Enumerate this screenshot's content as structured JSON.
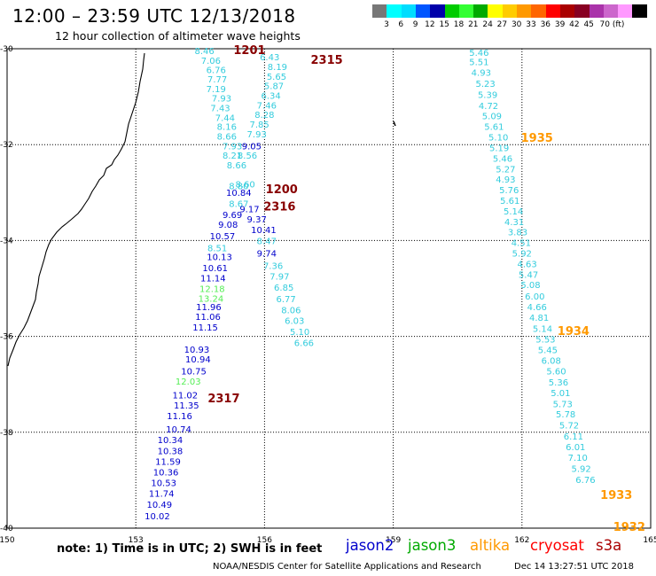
{
  "title": "12:00 – 23:59 UTC 12/13/2018",
  "subtitle": "12 hour collection of altimeter wave heights",
  "legend": {
    "colors": [
      "#777777",
      "#00ffff",
      "#00ddff",
      "#0055ff",
      "#0000aa",
      "#00cc00",
      "#33ff33",
      "#00aa00",
      "#ffff00",
      "#ffcc00",
      "#ff9900",
      "#ff6600",
      "#ff0000",
      "#aa0000",
      "#880022",
      "#aa33aa",
      "#cc66cc",
      "#ff99ff",
      "#000000"
    ],
    "labels": [
      "3",
      "6",
      "9",
      "12",
      "15",
      "18",
      "21",
      "24",
      "27",
      "30",
      "33",
      "36",
      "39",
      "42",
      "45",
      "70 (ft)"
    ]
  },
  "note": "note: 1) Time is in UTC; 2) SWH is in feet",
  "satellites": [
    {
      "name": "jason2",
      "color": "#0000cc"
    },
    {
      "name": "jason3",
      "color": "#00aa00"
    },
    {
      "name": "altika",
      "color": "#ff9900"
    },
    {
      "name": "cryosat",
      "color": "#ff0000"
    },
    {
      "name": "s3a",
      "color": "#aa0000"
    }
  ],
  "footer": "NOAA/NESDIS Center for Satellite Applications and Research",
  "footer_date": "Dec 14 13:27:51 UTC 2018",
  "map": {
    "x_ticks": [
      "150",
      "153",
      "156",
      "159",
      "162",
      "165"
    ],
    "y_ticks": [
      "-30",
      "-32",
      "-34",
      "-36",
      "-38",
      "-40"
    ],
    "lon_range": [
      150,
      165
    ],
    "lat_range": [
      -40,
      -30
    ],
    "colors": {
      "cyan": "#33ccdd",
      "blue": "#0000cc",
      "green": "#55ee55",
      "darkred": "#880000",
      "orange": "#ff9900"
    },
    "time_labels": [
      {
        "text": "1201",
        "lon": 155.65,
        "lat": -30.02,
        "color": "darkred"
      },
      {
        "text": "2315",
        "lon": 157.45,
        "lat": -30.22,
        "color": "darkred"
      },
      {
        "text": "1200",
        "lon": 156.4,
        "lat": -32.92,
        "color": "darkred"
      },
      {
        "text": "2316",
        "lon": 156.35,
        "lat": -33.28,
        "color": "darkred"
      },
      {
        "text": "1935",
        "lon": 162.35,
        "lat": -31.85,
        "color": "orange"
      },
      {
        "text": "1934",
        "lon": 163.2,
        "lat": -35.88,
        "color": "orange"
      },
      {
        "text": "2317",
        "lon": 155.05,
        "lat": -37.28,
        "color": "darkred"
      },
      {
        "text": "1933",
        "lon": 164.2,
        "lat": -39.3,
        "color": "orange"
      },
      {
        "text": "1932",
        "lon": 164.5,
        "lat": -39.96,
        "color": "orange"
      }
    ],
    "tracks": [
      {
        "name": "track-a-jason2",
        "values": [
          [
            "8.46",
            154.6,
            -30.04,
            "cyan"
          ],
          [
            "7.06",
            154.75,
            -30.24,
            "cyan"
          ],
          [
            "6.76",
            154.87,
            -30.43,
            "cyan"
          ],
          [
            "7.77",
            154.9,
            -30.63,
            "cyan"
          ],
          [
            "7.19",
            154.87,
            -30.83,
            "cyan"
          ],
          [
            "7.93",
            155.0,
            -31.03,
            "cyan"
          ],
          [
            "7.43",
            154.97,
            -31.23,
            "cyan"
          ],
          [
            "7.44",
            155.08,
            -31.43,
            "cyan"
          ],
          [
            "8.16",
            155.12,
            -31.62,
            "cyan"
          ],
          [
            "8.66",
            155.12,
            -31.82,
            "cyan"
          ],
          [
            "7.93",
            155.25,
            -32.02,
            "cyan"
          ],
          [
            "8.21",
            155.25,
            -32.22,
            "cyan"
          ],
          [
            "8.66",
            155.35,
            -32.42,
            "cyan"
          ],
          [
            "8.80",
            155.4,
            -32.86,
            "cyan"
          ],
          [
            "8.67",
            155.4,
            -33.23,
            "cyan"
          ],
          [
            "10.84",
            155.4,
            -32.99,
            "blue"
          ],
          [
            "9.69",
            155.25,
            -33.46,
            "blue"
          ],
          [
            "9.08",
            155.15,
            -33.66,
            "blue"
          ],
          [
            "10.57",
            155.02,
            -33.9,
            "blue"
          ],
          [
            "10.13",
            154.95,
            -34.33,
            "blue"
          ],
          [
            "10.61",
            154.85,
            -34.57,
            "blue"
          ],
          [
            "11.14",
            154.8,
            -34.78,
            "blue"
          ],
          [
            "11.96",
            154.7,
            -35.38,
            "blue"
          ],
          [
            "11.06",
            154.68,
            -35.58,
            "blue"
          ],
          [
            "11.15",
            154.62,
            -35.8,
            "blue"
          ],
          [
            "10.93",
            154.42,
            -36.27,
            "blue"
          ],
          [
            "10.94",
            154.45,
            -36.47,
            "blue"
          ],
          [
            "10.75",
            154.35,
            -36.72,
            "blue"
          ],
          [
            "11.02",
            154.15,
            -37.22,
            "blue"
          ],
          [
            "11.35",
            154.18,
            -37.43,
            "blue"
          ],
          [
            "11.16",
            154.02,
            -37.65,
            "blue"
          ],
          [
            "10.74",
            154.0,
            -37.93,
            "blue"
          ],
          [
            "10.34",
            153.8,
            -38.15,
            "blue"
          ],
          [
            "10.38",
            153.8,
            -38.38,
            "blue"
          ],
          [
            "11.59",
            153.75,
            -38.6,
            "blue"
          ],
          [
            "10.36",
            153.7,
            -38.83,
            "blue"
          ],
          [
            "10.53",
            153.65,
            -39.05,
            "blue"
          ],
          [
            "11.74",
            153.6,
            -39.27,
            "blue"
          ],
          [
            "10.49",
            153.55,
            -39.5,
            "blue"
          ],
          [
            "10.02",
            153.5,
            -39.74,
            "blue"
          ],
          [
            "8.51",
            154.9,
            -34.15,
            "cyan"
          ],
          [
            "12.18",
            154.78,
            -35.0,
            "green"
          ],
          [
            "13.24",
            154.75,
            -35.2,
            "green"
          ],
          [
            "12.03",
            154.22,
            -36.93,
            "green"
          ]
        ]
      },
      {
        "name": "track-b-s3a",
        "values": [
          [
            "6.43",
            156.12,
            -30.17,
            "cyan"
          ],
          [
            "8.19",
            156.3,
            -30.37,
            "cyan"
          ],
          [
            "5.65",
            156.28,
            -30.57,
            "cyan"
          ],
          [
            "5.87",
            156.22,
            -30.77,
            "cyan"
          ],
          [
            "6.34",
            156.15,
            -30.97,
            "cyan"
          ],
          [
            "7.46",
            156.05,
            -31.17,
            "cyan"
          ],
          [
            "8.28",
            156.0,
            -31.37,
            "cyan"
          ],
          [
            "7.85",
            155.88,
            -31.57,
            "cyan"
          ],
          [
            "7.93",
            155.82,
            -31.77,
            "cyan"
          ],
          [
            "9.05",
            155.7,
            -32.02,
            "blue"
          ],
          [
            "8.56",
            155.6,
            -32.22,
            "cyan"
          ],
          [
            "8.60",
            155.55,
            -32.82,
            "cyan"
          ],
          [
            "9.17",
            155.65,
            -33.34,
            "blue"
          ],
          [
            "9.37",
            155.82,
            -33.55,
            "blue"
          ],
          [
            "10.41",
            155.98,
            -33.77,
            "blue"
          ],
          [
            "8.47",
            156.05,
            -34.0,
            "cyan"
          ],
          [
            "9.74",
            156.05,
            -34.26,
            "blue"
          ],
          [
            "7.36",
            156.2,
            -34.52,
            "cyan"
          ],
          [
            "7.97",
            156.35,
            -34.74,
            "cyan"
          ],
          [
            "6.85",
            156.45,
            -34.97,
            "cyan"
          ],
          [
            "6.77",
            156.5,
            -35.21,
            "cyan"
          ],
          [
            "8.06",
            156.62,
            -35.44,
            "cyan"
          ],
          [
            "6.03",
            156.7,
            -35.67,
            "cyan"
          ],
          [
            "5.10",
            156.82,
            -35.9,
            "cyan"
          ],
          [
            "6.66",
            156.92,
            -36.13,
            "cyan"
          ]
        ]
      },
      {
        "name": "track-c-altika",
        "values": [
          [
            "5.46",
            161.0,
            -30.07,
            "cyan"
          ],
          [
            "5.51",
            161.0,
            -30.27,
            "cyan"
          ],
          [
            "4.93",
            161.05,
            -30.49,
            "cyan"
          ],
          [
            "5.23",
            161.15,
            -30.72,
            "cyan"
          ],
          [
            "5.39",
            161.2,
            -30.95,
            "cyan"
          ],
          [
            "4.72",
            161.22,
            -31.18,
            "cyan"
          ],
          [
            "5.09",
            161.3,
            -31.4,
            "cyan"
          ],
          [
            "5.61",
            161.35,
            -31.62,
            "cyan"
          ],
          [
            "5.10",
            161.45,
            -31.84,
            "cyan"
          ],
          [
            "5.19",
            161.47,
            -32.06,
            "cyan"
          ],
          [
            "5.46",
            161.55,
            -32.28,
            "cyan"
          ],
          [
            "5.27",
            161.62,
            -32.5,
            "cyan"
          ],
          [
            "4.93",
            161.62,
            -32.72,
            "cyan"
          ],
          [
            "5.76",
            161.7,
            -32.94,
            "cyan"
          ],
          [
            "5.61",
            161.72,
            -33.16,
            "cyan"
          ],
          [
            "5.14",
            161.8,
            -33.38,
            "cyan"
          ],
          [
            "4.31",
            161.82,
            -33.6,
            "cyan"
          ],
          [
            "3.83",
            161.9,
            -33.82,
            "cyan"
          ],
          [
            "4.51",
            161.98,
            -34.04,
            "cyan"
          ],
          [
            "5.92",
            162.0,
            -34.26,
            "cyan"
          ],
          [
            "4.63",
            162.12,
            -34.48,
            "cyan"
          ],
          [
            "5.47",
            162.15,
            -34.7,
            "cyan"
          ],
          [
            "5.08",
            162.2,
            -34.92,
            "cyan"
          ],
          [
            "6.00",
            162.3,
            -35.16,
            "cyan"
          ],
          [
            "4.66",
            162.35,
            -35.38,
            "cyan"
          ],
          [
            "4.81",
            162.4,
            -35.6,
            "cyan"
          ],
          [
            "5.14",
            162.48,
            -35.83,
            "cyan"
          ],
          [
            "5.53",
            162.55,
            -36.05,
            "cyan"
          ],
          [
            "5.45",
            162.6,
            -36.28,
            "cyan"
          ],
          [
            "6.08",
            162.68,
            -36.5,
            "cyan"
          ],
          [
            "5.60",
            162.8,
            -36.72,
            "cyan"
          ],
          [
            "5.36",
            162.85,
            -36.95,
            "cyan"
          ],
          [
            "5.01",
            162.9,
            -37.17,
            "cyan"
          ],
          [
            "5.73",
            162.95,
            -37.4,
            "cyan"
          ],
          [
            "5.78",
            163.02,
            -37.62,
            "cyan"
          ],
          [
            "5.72",
            163.1,
            -37.85,
            "cyan"
          ],
          [
            "6.11",
            163.2,
            -38.08,
            "cyan"
          ],
          [
            "6.01",
            163.25,
            -38.3,
            "cyan"
          ],
          [
            "7.10",
            163.3,
            -38.52,
            "cyan"
          ],
          [
            "5.92",
            163.38,
            -38.75,
            "cyan"
          ],
          [
            "6.76",
            163.48,
            -38.98,
            "cyan"
          ]
        ]
      }
    ]
  }
}
